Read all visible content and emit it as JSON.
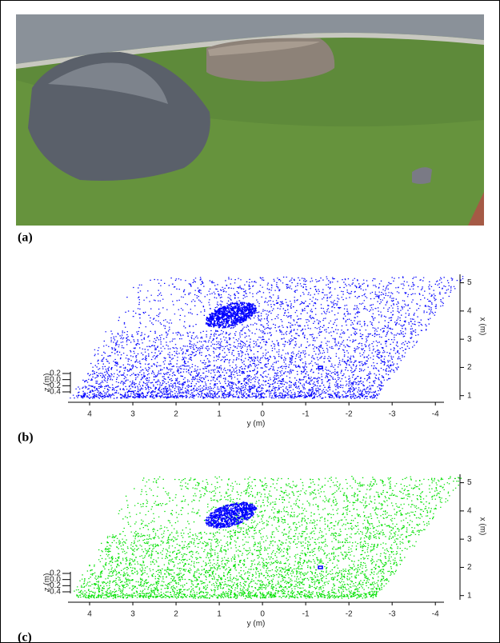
{
  "figure": {
    "panels": [
      {
        "label": "(a)"
      },
      {
        "label": "(b)",
        "color": "#0000ff",
        "object_color": "#0000ff",
        "y_axis": {
          "label": "y (m)",
          "lim": [
            4.5,
            -4.2
          ],
          "ticks": [
            4,
            3,
            2,
            1,
            0,
            -1,
            -2,
            -3,
            -4
          ]
        },
        "x_axis": {
          "label": "x (m)",
          "lim": [
            0.85,
            5.3
          ],
          "ticks": [
            1,
            2,
            3,
            4,
            5
          ]
        },
        "z_axis": {
          "label": "z (m)",
          "lim": [
            -0.4,
            0.2
          ],
          "ticks": [
            0.2,
            {
              "value": 0,
              "label": "0.0"
            },
            -0.2,
            -0.4
          ]
        }
      },
      {
        "label": "(c)",
        "color": "#00e000",
        "object_color": "#0000ff",
        "y_axis": {
          "label": "y (m)",
          "lim": [
            4.5,
            -4.2
          ],
          "ticks": [
            4,
            3,
            2,
            1,
            0,
            -1,
            -2,
            -3,
            -4
          ]
        },
        "x_axis": {
          "label": "x (m)",
          "lim": [
            0.85,
            5.3
          ],
          "ticks": [
            1,
            2,
            3,
            4,
            5
          ]
        },
        "z_axis": {
          "label": "z (m)",
          "lim": [
            -0.4,
            0.2
          ],
          "ticks": [
            0.2,
            {
              "value": 0,
              "label": "0.0"
            },
            -0.2,
            -0.4
          ]
        }
      }
    ]
  }
}
